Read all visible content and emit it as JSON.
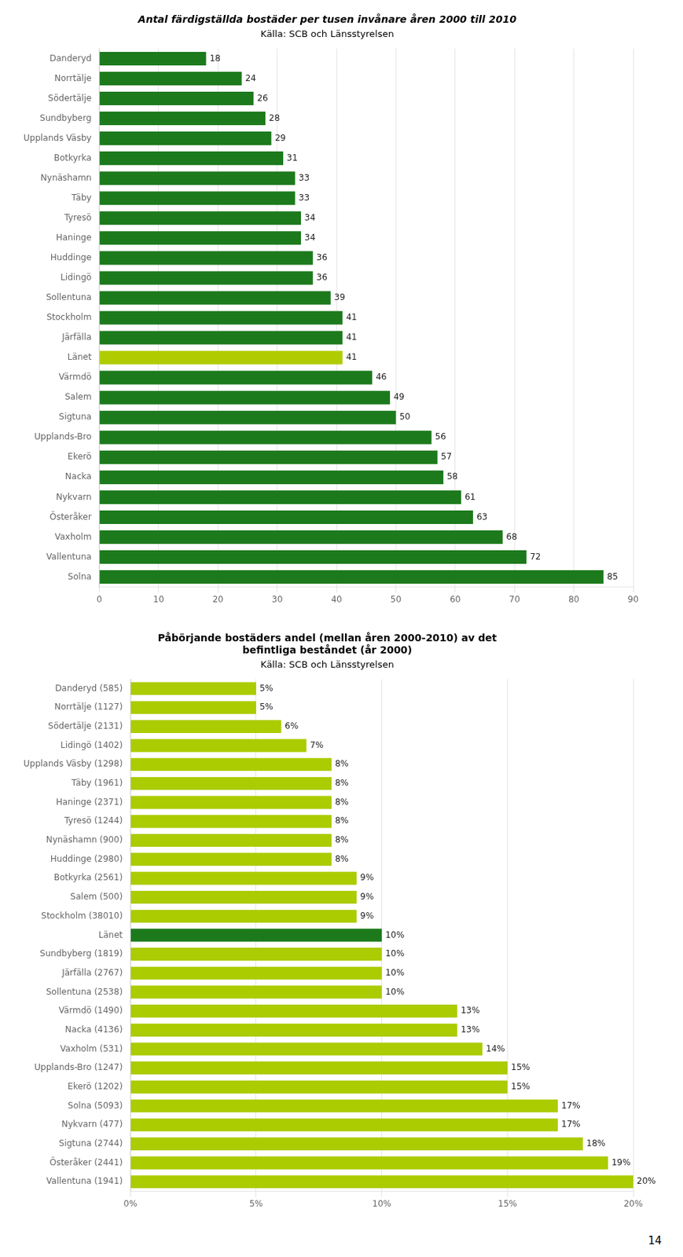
{
  "chart_data": [
    {
      "type": "bar",
      "orientation": "horizontal",
      "title": "Antal färdigställda bostäder per tusen invånare åren 2000 till 2010",
      "subtitle": "Källa: SCB och Länsstyrelsen",
      "categories": [
        "Danderyd",
        "Norrtälje",
        "Södertälje",
        "Sundbyberg",
        "Upplands Väsby",
        "Botkyrka",
        "Nynäshamn",
        "Täby",
        "Tyresö",
        "Haninge",
        "Huddinge",
        "Lidingö",
        "Sollentuna",
        "Stockholm",
        "Järfälla",
        "Länet",
        "Värmdö",
        "Salem",
        "Sigtuna",
        "Upplands-Bro",
        "Ekerö",
        "Nacka",
        "Nykvarn",
        "Österåker",
        "Vaxholm",
        "Vallentuna",
        "Solna"
      ],
      "values": [
        18,
        24,
        26,
        28,
        29,
        31,
        33,
        33,
        34,
        34,
        36,
        36,
        39,
        41,
        41,
        41,
        46,
        49,
        50,
        56,
        57,
        58,
        61,
        63,
        68,
        72,
        85
      ],
      "colors": [
        "#1c7a1c",
        "#1c7a1c",
        "#1c7a1c",
        "#1c7a1c",
        "#1c7a1c",
        "#1c7a1c",
        "#1c7a1c",
        "#1c7a1c",
        "#1c7a1c",
        "#1c7a1c",
        "#1c7a1c",
        "#1c7a1c",
        "#1c7a1c",
        "#1c7a1c",
        "#1c7a1c",
        "#b0cc00",
        "#1c7a1c",
        "#1c7a1c",
        "#1c7a1c",
        "#1c7a1c",
        "#1c7a1c",
        "#1c7a1c",
        "#1c7a1c",
        "#1c7a1c",
        "#1c7a1c",
        "#1c7a1c",
        "#1c7a1c"
      ],
      "xlim": [
        0,
        90
      ],
      "xticks": [
        0,
        10,
        20,
        30,
        40,
        50,
        60,
        70,
        80,
        90
      ],
      "grid": true,
      "data_labels": true
    },
    {
      "type": "bar",
      "orientation": "horizontal",
      "title": [
        "Påbörjande bostäders andel (mellan åren 2000-2010) av det",
        "befintliga beståndet (år 2000)"
      ],
      "subtitle": "Källa: SCB och Länsstyrelsen",
      "categories": [
        "Danderyd (585)",
        "Norrtälje (1127)",
        "Södertälje (2131)",
        "Lidingö (1402)",
        "Upplands Väsby (1298)",
        "Täby (1961)",
        "Haninge (2371)",
        "Tyresö (1244)",
        "Nynäshamn (900)",
        "Huddinge (2980)",
        "Botkyrka (2561)",
        "Salem (500)",
        "Stockholm (38010)",
        "Länet",
        "Sundbyberg (1819)",
        "Järfälla (2767)",
        "Sollentuna (2538)",
        "Värmdö (1490)",
        "Nacka (4136)",
        "Vaxholm (531)",
        "Upplands-Bro (1247)",
        "Ekerö (1202)",
        "Solna (5093)",
        "Nykvarn (477)",
        "Sigtuna (2744)",
        "Österåker (2441)",
        "Vallentuna (1941)"
      ],
      "values": [
        5,
        5,
        6,
        7,
        8,
        8,
        8,
        8,
        8,
        8,
        9,
        9,
        9,
        10,
        10,
        10,
        10,
        13,
        13,
        14,
        15,
        15,
        17,
        17,
        18,
        19,
        20
      ],
      "value_labels": [
        "5%",
        "5%",
        "6%",
        "7%",
        "8%",
        "8%",
        "8%",
        "8%",
        "8%",
        "8%",
        "9%",
        "9%",
        "9%",
        "10%",
        "10%",
        "10%",
        "10%",
        "13%",
        "13%",
        "14%",
        "15%",
        "15%",
        "17%",
        "17%",
        "18%",
        "19%",
        "20%"
      ],
      "colors": [
        "#aacc00",
        "#aacc00",
        "#aacc00",
        "#aacc00",
        "#aacc00",
        "#aacc00",
        "#aacc00",
        "#aacc00",
        "#aacc00",
        "#aacc00",
        "#aacc00",
        "#aacc00",
        "#aacc00",
        "#1c7a1c",
        "#aacc00",
        "#aacc00",
        "#aacc00",
        "#aacc00",
        "#aacc00",
        "#aacc00",
        "#aacc00",
        "#aacc00",
        "#aacc00",
        "#aacc00",
        "#aacc00",
        "#aacc00",
        "#aacc00"
      ],
      "xlim": [
        0,
        20
      ],
      "xticks": [
        {
          "value": 0,
          "label": "0%"
        },
        {
          "value": 5,
          "label": "5%"
        },
        {
          "value": 10,
          "label": "10%"
        },
        {
          "value": 15,
          "label": "15%"
        },
        {
          "value": 20,
          "label": "20%"
        }
      ],
      "grid": true,
      "data_labels": true,
      "annotations": [
        "14"
      ]
    }
  ]
}
